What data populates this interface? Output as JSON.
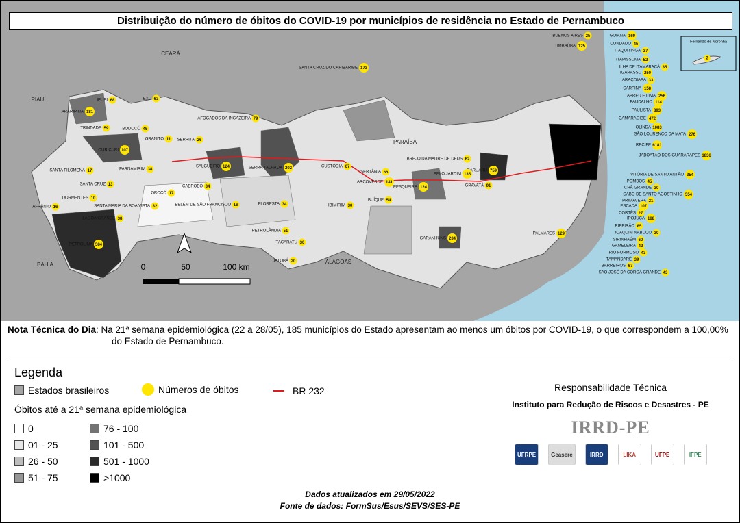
{
  "title": "Distribuição do número de óbitos do COVID-19 por municípios de residência no Estado de Pernambuco",
  "map": {
    "states": [
      "CEARÁ",
      "PIAUÍ",
      "PARAÍBA",
      "ALAGOAS",
      "BAHIA"
    ],
    "inset": {
      "label": "Fernando de Noronha",
      "deaths": 2
    },
    "scale": [
      "0",
      "50",
      "100 km"
    ],
    "municipalities": [
      {
        "name": "ARARIPINA",
        "deaths": 181
      },
      {
        "name": "IPUBI",
        "deaths": 68
      },
      {
        "name": "TRINDADE",
        "deaths": 59
      },
      {
        "name": "OURICURI",
        "deaths": 107
      },
      {
        "name": "EXU",
        "deaths": 63
      },
      {
        "name": "BODOCÓ",
        "deaths": 45
      },
      {
        "name": "GRANITO",
        "deaths": 11
      },
      {
        "name": "SERRITA",
        "deaths": 26
      },
      {
        "name": "SALGUEIRO",
        "deaths": 124
      },
      {
        "name": "PARNAMIRIM",
        "deaths": 38
      },
      {
        "name": "SANTA FILOMENA",
        "deaths": 17
      },
      {
        "name": "SANTA CRUZ",
        "deaths": 13
      },
      {
        "name": "DORMENTES",
        "deaths": 10
      },
      {
        "name": "AFRÂNIO",
        "deaths": 16
      },
      {
        "name": "LAGOA GRANDE",
        "deaths": 38
      },
      {
        "name": "PETROLINA",
        "deaths": 584
      },
      {
        "name": "CABROBÓ",
        "deaths": 34
      },
      {
        "name": "OROCÓ",
        "deaths": 17
      },
      {
        "name": "SANTA MARIA DA BOA VISTA",
        "deaths": 32
      },
      {
        "name": "BELÉM DE SÃO FRANCISCO",
        "deaths": 16
      },
      {
        "name": "FLORESTA",
        "deaths": 34
      },
      {
        "name": "SERRA TALHADA",
        "deaths": 202
      },
      {
        "name": "AFOGADOS DA INGAZEIRA",
        "deaths": 79
      },
      {
        "name": "PETROLÂNDIA",
        "deaths": 51
      },
      {
        "name": "TACARATU",
        "deaths": 30
      },
      {
        "name": "JATOBÁ",
        "deaths": 20
      },
      {
        "name": "IBIMIRIM",
        "deaths": 30
      },
      {
        "name": "ARCOVERDE",
        "deaths": 141
      },
      {
        "name": "BUÍQUE",
        "deaths": 54
      },
      {
        "name": "SERTÂNIA",
        "deaths": 55
      },
      {
        "name": "CUSTÓDIA",
        "deaths": 67
      },
      {
        "name": "SANTA CRUZ DO CAPIBARIBE",
        "deaths": 173
      },
      {
        "name": "BREJO DA MADRE DE DEUS",
        "deaths": 62
      },
      {
        "name": "GARANHUNS",
        "deaths": 234
      },
      {
        "name": "CARUARU",
        "deaths": 759
      },
      {
        "name": "GRAVATÁ",
        "deaths": 91
      },
      {
        "name": "BELO JARDIM",
        "deaths": 135
      },
      {
        "name": "PESQUEIRA",
        "deaths": 124
      },
      {
        "name": "BUENOS AIRES",
        "deaths": 25
      },
      {
        "name": "TIMBAÚBA",
        "deaths": 125
      },
      {
        "name": "GOIANA",
        "deaths": 169
      },
      {
        "name": "CONDADO",
        "deaths": 45
      },
      {
        "name": "ITAQUITINGA",
        "deaths": 37
      },
      {
        "name": "ITAPISSUMA",
        "deaths": 52
      },
      {
        "name": "ILHA DE ITAMARACÁ",
        "deaths": 35
      },
      {
        "name": "IGARASSU",
        "deaths": 250
      },
      {
        "name": "ARAÇOIABA",
        "deaths": 33
      },
      {
        "name": "CARPINA",
        "deaths": 158
      },
      {
        "name": "ABREU E LIMA",
        "deaths": 256
      },
      {
        "name": "PAUDALHO",
        "deaths": 114
      },
      {
        "name": "PAULISTA",
        "deaths": 893
      },
      {
        "name": "CAMARAGIBE",
        "deaths": 472
      },
      {
        "name": "OLINDA",
        "deaths": 1083
      },
      {
        "name": "SÃO LOURENÇO DA MATA",
        "deaths": 276
      },
      {
        "name": "RECIFE",
        "deaths": 6181
      },
      {
        "name": "JABOATÃO DOS GUARARAPES",
        "deaths": 1836
      },
      {
        "name": "VITÓRIA DE SANTO ANTÃO",
        "deaths": 354
      },
      {
        "name": "POMBOS",
        "deaths": 45
      },
      {
        "name": "CHÃ GRANDE",
        "deaths": 30
      },
      {
        "name": "CABO DE SANTO AGOSTINHO",
        "deaths": 554
      },
      {
        "name": "PRIMAVERA",
        "deaths": 21
      },
      {
        "name": "ESCADA",
        "deaths": 107
      },
      {
        "name": "CORTÊS",
        "deaths": 27
      },
      {
        "name": "IPOJUCA",
        "deaths": 188
      },
      {
        "name": "RIBEIRÃO",
        "deaths": 85
      },
      {
        "name": "JOAQUIM NABUCO",
        "deaths": 30
      },
      {
        "name": "SIRINHAÉM",
        "deaths": 60
      },
      {
        "name": "GAMELEIRA",
        "deaths": 42
      },
      {
        "name": "RIO FORMOSO",
        "deaths": 43
      },
      {
        "name": "TAMANDARÉ",
        "deaths": 39
      },
      {
        "name": "BARREIROS",
        "deaths": 67
      },
      {
        "name": "SÃO JOSÉ DA COROA GRANDE",
        "deaths": 43
      },
      {
        "name": "PALMARES",
        "deaths": 129
      }
    ]
  },
  "note": {
    "label": "Nota Técnica do Dia",
    "text": ": Na 21ª semana epidemiológica (22 a 28/05), 185 municípios do Estado apresentam ao menos um óbitos por COVID-19, o que correspondem a 100,00% do Estado de Pernambuco."
  },
  "legend": {
    "title": "Legenda",
    "items": [
      "Estados brasileiros",
      "Números de óbitos",
      "BR 232"
    ],
    "classes_title": "Óbitos até a 21ª semana epidemiológica",
    "classes": [
      {
        "label": "0",
        "color": "#ffffff"
      },
      {
        "label": "01 - 25",
        "color": "#e6e6e6"
      },
      {
        "label": "26 - 50",
        "color": "#bdbdbd"
      },
      {
        "label": "51 - 75",
        "color": "#969696"
      },
      {
        "label": "76 - 100",
        "color": "#737373"
      },
      {
        "label": "101 - 500",
        "color": "#525252"
      },
      {
        "label": "501 - 1000",
        "color": "#2b2b2b"
      },
      {
        "label": ">1000",
        "color": "#000000"
      }
    ]
  },
  "responsibility": {
    "title": "Responsabilidade Técnica",
    "institute": "Instituto para Redução de Riscos e Desastres - PE",
    "logo": "IRRD-PE",
    "logos": [
      "UFRPE",
      "Geasere",
      "IRRD",
      "LIKA",
      "UFPE",
      "IFPE"
    ]
  },
  "footer": {
    "updated": "Dados atualizados em 29/05/2022",
    "source": "Fonte de dados: FormSus/Esus/SEVS/SES-PE"
  }
}
